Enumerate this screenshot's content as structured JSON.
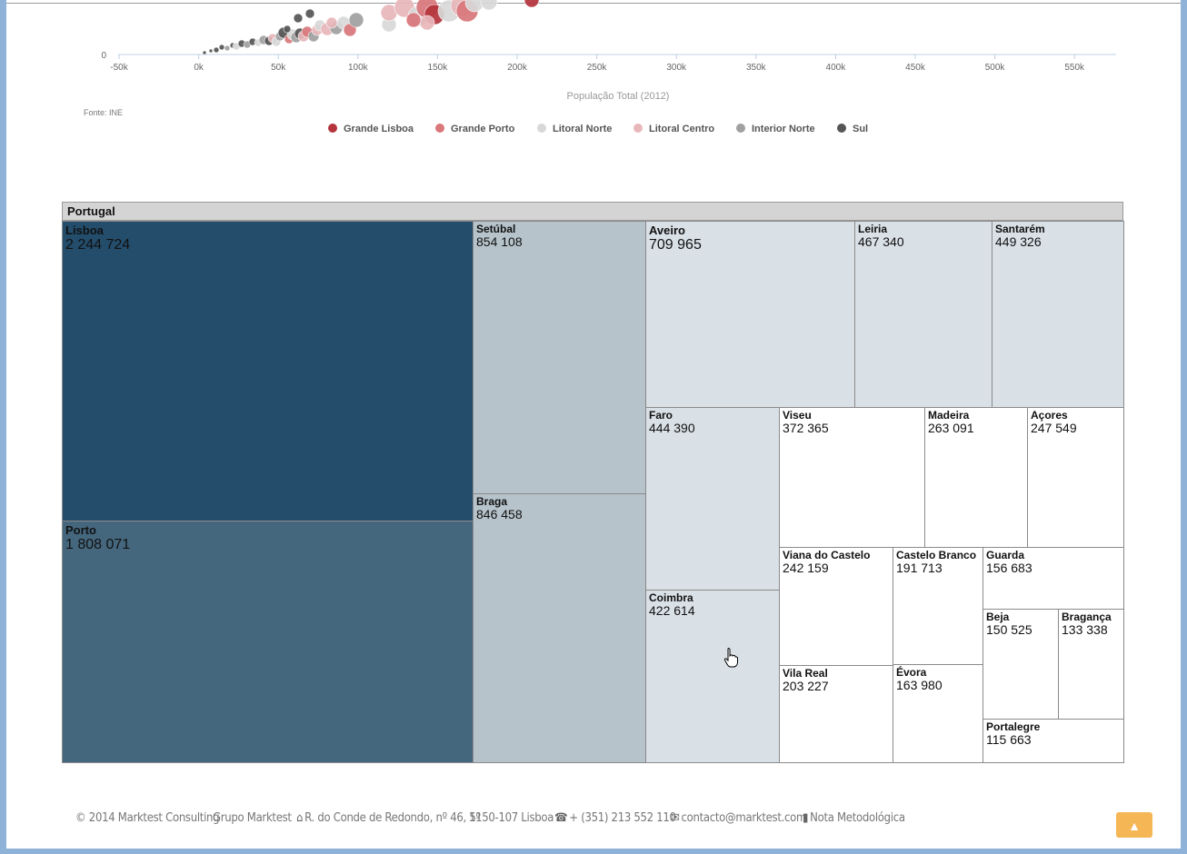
{
  "chart_data": {
    "type": "scatter",
    "xlabel": "População Total (2012)",
    "x_ticks": [
      "-50k",
      "0k",
      "50k",
      "100k",
      "150k",
      "200k",
      "250k",
      "300k",
      "350k",
      "400k",
      "450k",
      "500k",
      "550k"
    ],
    "xlim": [
      -50000,
      580000
    ],
    "y_ticks": [
      "0"
    ],
    "source": "Fonte: INE",
    "series": [
      {
        "name": "Grande Lisboa",
        "color": "#b5343c"
      },
      {
        "name": "Grande Porto",
        "color": "#d9777b"
      },
      {
        "name": "Litoral Norte",
        "color": "#d8d8d8"
      },
      {
        "name": "Litoral Centro",
        "color": "#e8b7ba"
      },
      {
        "name": "Interior Norte",
        "color": "#a0a0a0"
      },
      {
        "name": "Sul",
        "color": "#555555"
      }
    ]
  },
  "treemap": {
    "root": "Portugal",
    "items": [
      {
        "name": "Lisboa",
        "value": "2 244 724"
      },
      {
        "name": "Porto",
        "value": "1 808 071"
      },
      {
        "name": "Setúbal",
        "value": "854 108"
      },
      {
        "name": "Braga",
        "value": "846 458"
      },
      {
        "name": "Aveiro",
        "value": "709 965"
      },
      {
        "name": "Leiria",
        "value": "467 340"
      },
      {
        "name": "Santarém",
        "value": "449 326"
      },
      {
        "name": "Faro",
        "value": "444 390"
      },
      {
        "name": "Viseu",
        "value": "372 365"
      },
      {
        "name": "Madeira",
        "value": "263 091"
      },
      {
        "name": "Açores",
        "value": "247 549"
      },
      {
        "name": "Coimbra",
        "value": "422 614"
      },
      {
        "name": "Viana do Castelo",
        "value": "242 159"
      },
      {
        "name": "Castelo Branco",
        "value": "191 713"
      },
      {
        "name": "Guarda",
        "value": "156 683"
      },
      {
        "name": "Beja",
        "value": "150 525"
      },
      {
        "name": "Bragança",
        "value": "133 338"
      },
      {
        "name": "Vila Real",
        "value": "203 227"
      },
      {
        "name": "Évora",
        "value": "163 980"
      },
      {
        "name": "Portalegre",
        "value": "115 663"
      }
    ]
  },
  "footer": {
    "copyright": "© 2014 Marktest Consulting",
    "group": "Grupo Marktest",
    "address": "R. do Conde de Redondo, nº 46, 5º",
    "postal": "1150-107 Lisboa",
    "phone": "+ (351) 213 552 110",
    "email": "contacto@marktest.com",
    "note": "Nota Metodológica"
  },
  "colors": {
    "tm_dark": "#234d6b",
    "tm_mid": "#45677e",
    "tm_light": "#b6c3cb",
    "tm_pale": "#d9e0e6",
    "tm_white": "#ffffff",
    "accent": "#f5b655"
  }
}
